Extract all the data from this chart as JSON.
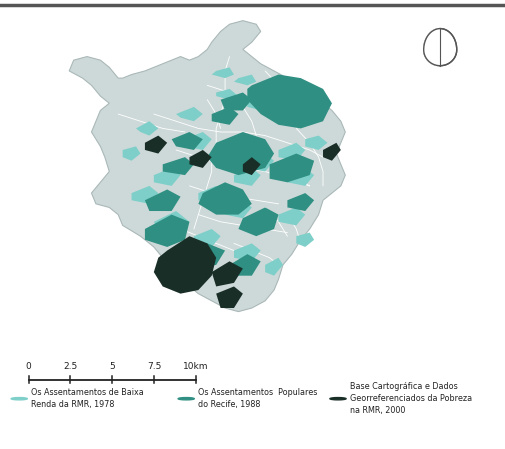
{
  "background_color": "#ffffff",
  "top_border_color": "#555555",
  "legend": [
    {
      "color": "#7ecfc9",
      "label": "Os Assentamentos de Baixa\nRenda da RMR, 1978"
    },
    {
      "color": "#2e8f82",
      "label": "Os Assentamentos  Populares\ndo Recife, 1988"
    },
    {
      "color": "#1a2e28",
      "label": "Base Cartográfica e Dados\nGeorreferenciados da Pobreza\nna RMR, 2000"
    }
  ],
  "scale_labels": [
    "0",
    "2.5",
    "5",
    "7.5",
    "10km"
  ],
  "scale_ticks": [
    0,
    2.5,
    5,
    7.5,
    10
  ],
  "district_line_color": "#ffffff",
  "color_1978": "#7ecfc9",
  "color_1988": "#2e8f82",
  "color_2000": "#1a2e28",
  "map_fill": "#cdd9d8",
  "map_outline_color": "#aab8b8",
  "north_color": "#555555"
}
